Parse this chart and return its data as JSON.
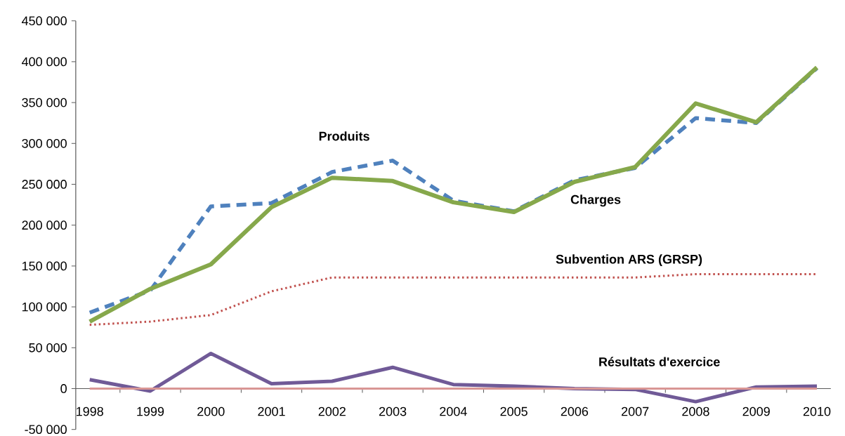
{
  "chart_data": {
    "type": "line",
    "categories": [
      "1998",
      "1999",
      "2000",
      "2001",
      "2002",
      "2003",
      "2004",
      "2005",
      "2006",
      "2007",
      "2008",
      "2009",
      "2010"
    ],
    "series": [
      {
        "name": "Produits",
        "color": "#4f81bd",
        "line_style": "dashed",
        "values": [
          93000,
          120000,
          223000,
          227000,
          265000,
          279000,
          230000,
          217000,
          255000,
          270000,
          331000,
          325000,
          392000
        ]
      },
      {
        "name": "Charges",
        "color": "#86a84b",
        "line_style": "solid",
        "values": [
          82000,
          122000,
          152000,
          222000,
          258000,
          254000,
          228000,
          216000,
          253000,
          271000,
          349000,
          326000,
          393000
        ]
      },
      {
        "name": "Subvention ARS (GRSP)",
        "color": "#c0504d",
        "line_style": "dotted",
        "values": [
          78000,
          82000,
          90000,
          119000,
          136000,
          136000,
          136000,
          136000,
          136000,
          136000,
          140000,
          140000,
          140000
        ]
      },
      {
        "name": "Résultats d'exercice",
        "color": "#705a97",
        "line_style": "solid",
        "values": [
          11000,
          -3000,
          43000,
          6000,
          9000,
          26000,
          5000,
          3000,
          0,
          -1000,
          -16000,
          2000,
          3000
        ]
      },
      {
        "color": "#d99694",
        "line_style": "solid",
        "values": [
          0,
          0,
          0,
          0,
          0,
          0,
          0,
          0,
          0,
          0,
          0,
          0,
          0
        ]
      }
    ],
    "ylim": [
      -50000,
      450000
    ],
    "yticks": [
      {
        "value": -50000,
        "label": "-50 000"
      },
      {
        "value": 0,
        "label": "0"
      },
      {
        "value": 50000,
        "label": "50 000"
      },
      {
        "value": 100000,
        "label": "100 000"
      },
      {
        "value": 150000,
        "label": "150 000"
      },
      {
        "value": 200000,
        "label": "200 000"
      },
      {
        "value": 250000,
        "label": "250 000"
      },
      {
        "value": 300000,
        "label": "300 000"
      },
      {
        "value": 350000,
        "label": "350 000"
      },
      {
        "value": 400000,
        "label": "400 000"
      },
      {
        "value": 450000,
        "label": "450 000"
      }
    ],
    "grid": false,
    "marker": "none"
  }
}
